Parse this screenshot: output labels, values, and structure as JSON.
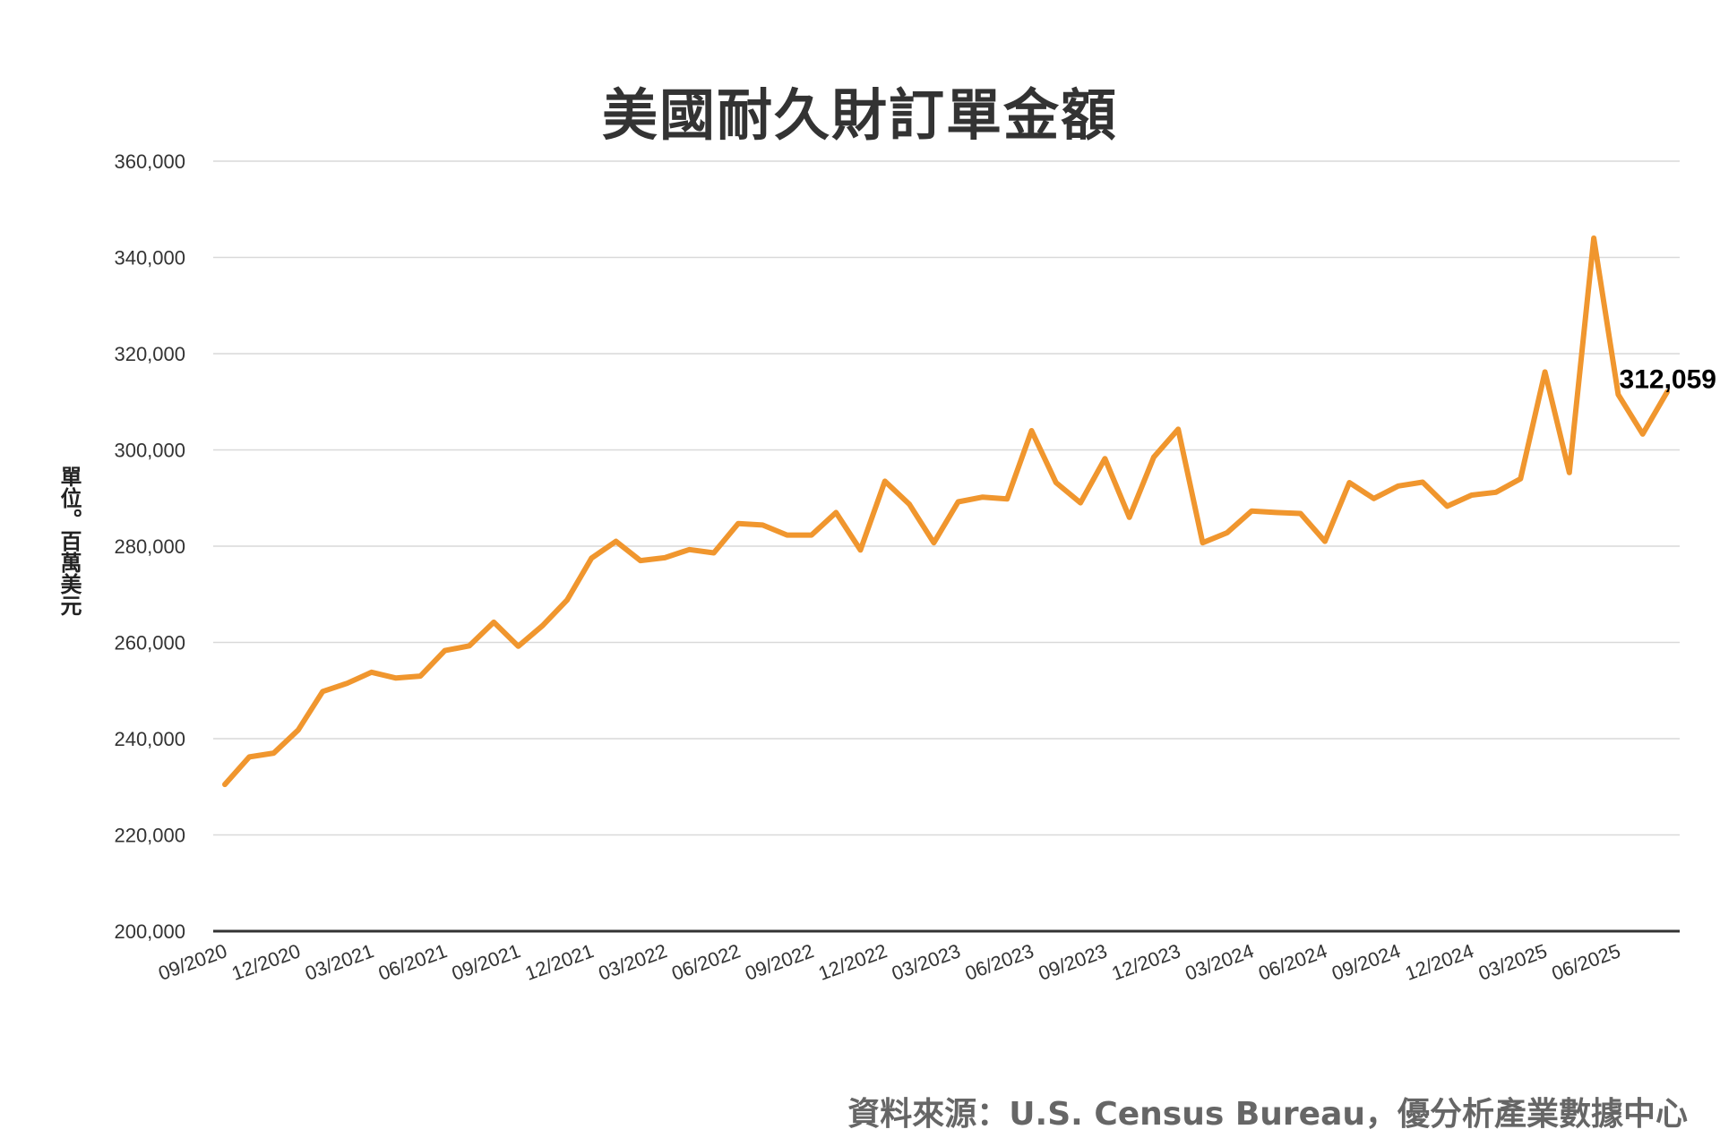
{
  "chart_data": {
    "type": "line",
    "title": "美國耐久財訂單金額",
    "ylabel": "單位。百萬美元",
    "xlabel": "",
    "source": "資料來源：U.S. Census Bureau，優分析產業數據中心",
    "ylim": [
      200000,
      360000
    ],
    "yticks": [
      "200,000",
      "220,000",
      "240,000",
      "260,000",
      "280,000",
      "300,000",
      "320,000",
      "340,000",
      "360,000"
    ],
    "xticks": [
      "09/2020",
      "12/2020",
      "03/2021",
      "06/2021",
      "09/2021",
      "12/2021",
      "03/2022",
      "06/2022",
      "09/2022",
      "12/2022",
      "03/2023",
      "06/2023",
      "09/2023",
      "12/2023",
      "03/2024",
      "06/2024",
      "09/2024",
      "12/2024",
      "03/2025",
      "06/2025"
    ],
    "grid": true,
    "line_color": "#F0962E",
    "series": [
      {
        "values": [
          230500,
          236200,
          237000,
          241800,
          249800,
          251500,
          253800,
          252600,
          253000,
          258300,
          259300,
          264200,
          259200,
          263500,
          268800,
          277500,
          281000,
          277000,
          277600,
          279300,
          278600,
          284700,
          284400,
          282300,
          282300,
          287000,
          279200,
          293500,
          288700,
          280700,
          289200,
          290200,
          289800,
          304000,
          293200,
          289000,
          298200,
          286000,
          298500,
          304300,
          280700,
          282800,
          287300,
          287000,
          286800,
          281000,
          293200,
          289900,
          292500,
          293300,
          288300,
          290600,
          291200,
          294000,
          316200,
          295300,
          344000,
          311500,
          303300,
          312059
        ],
        "last_label": "312,059"
      }
    ]
  }
}
